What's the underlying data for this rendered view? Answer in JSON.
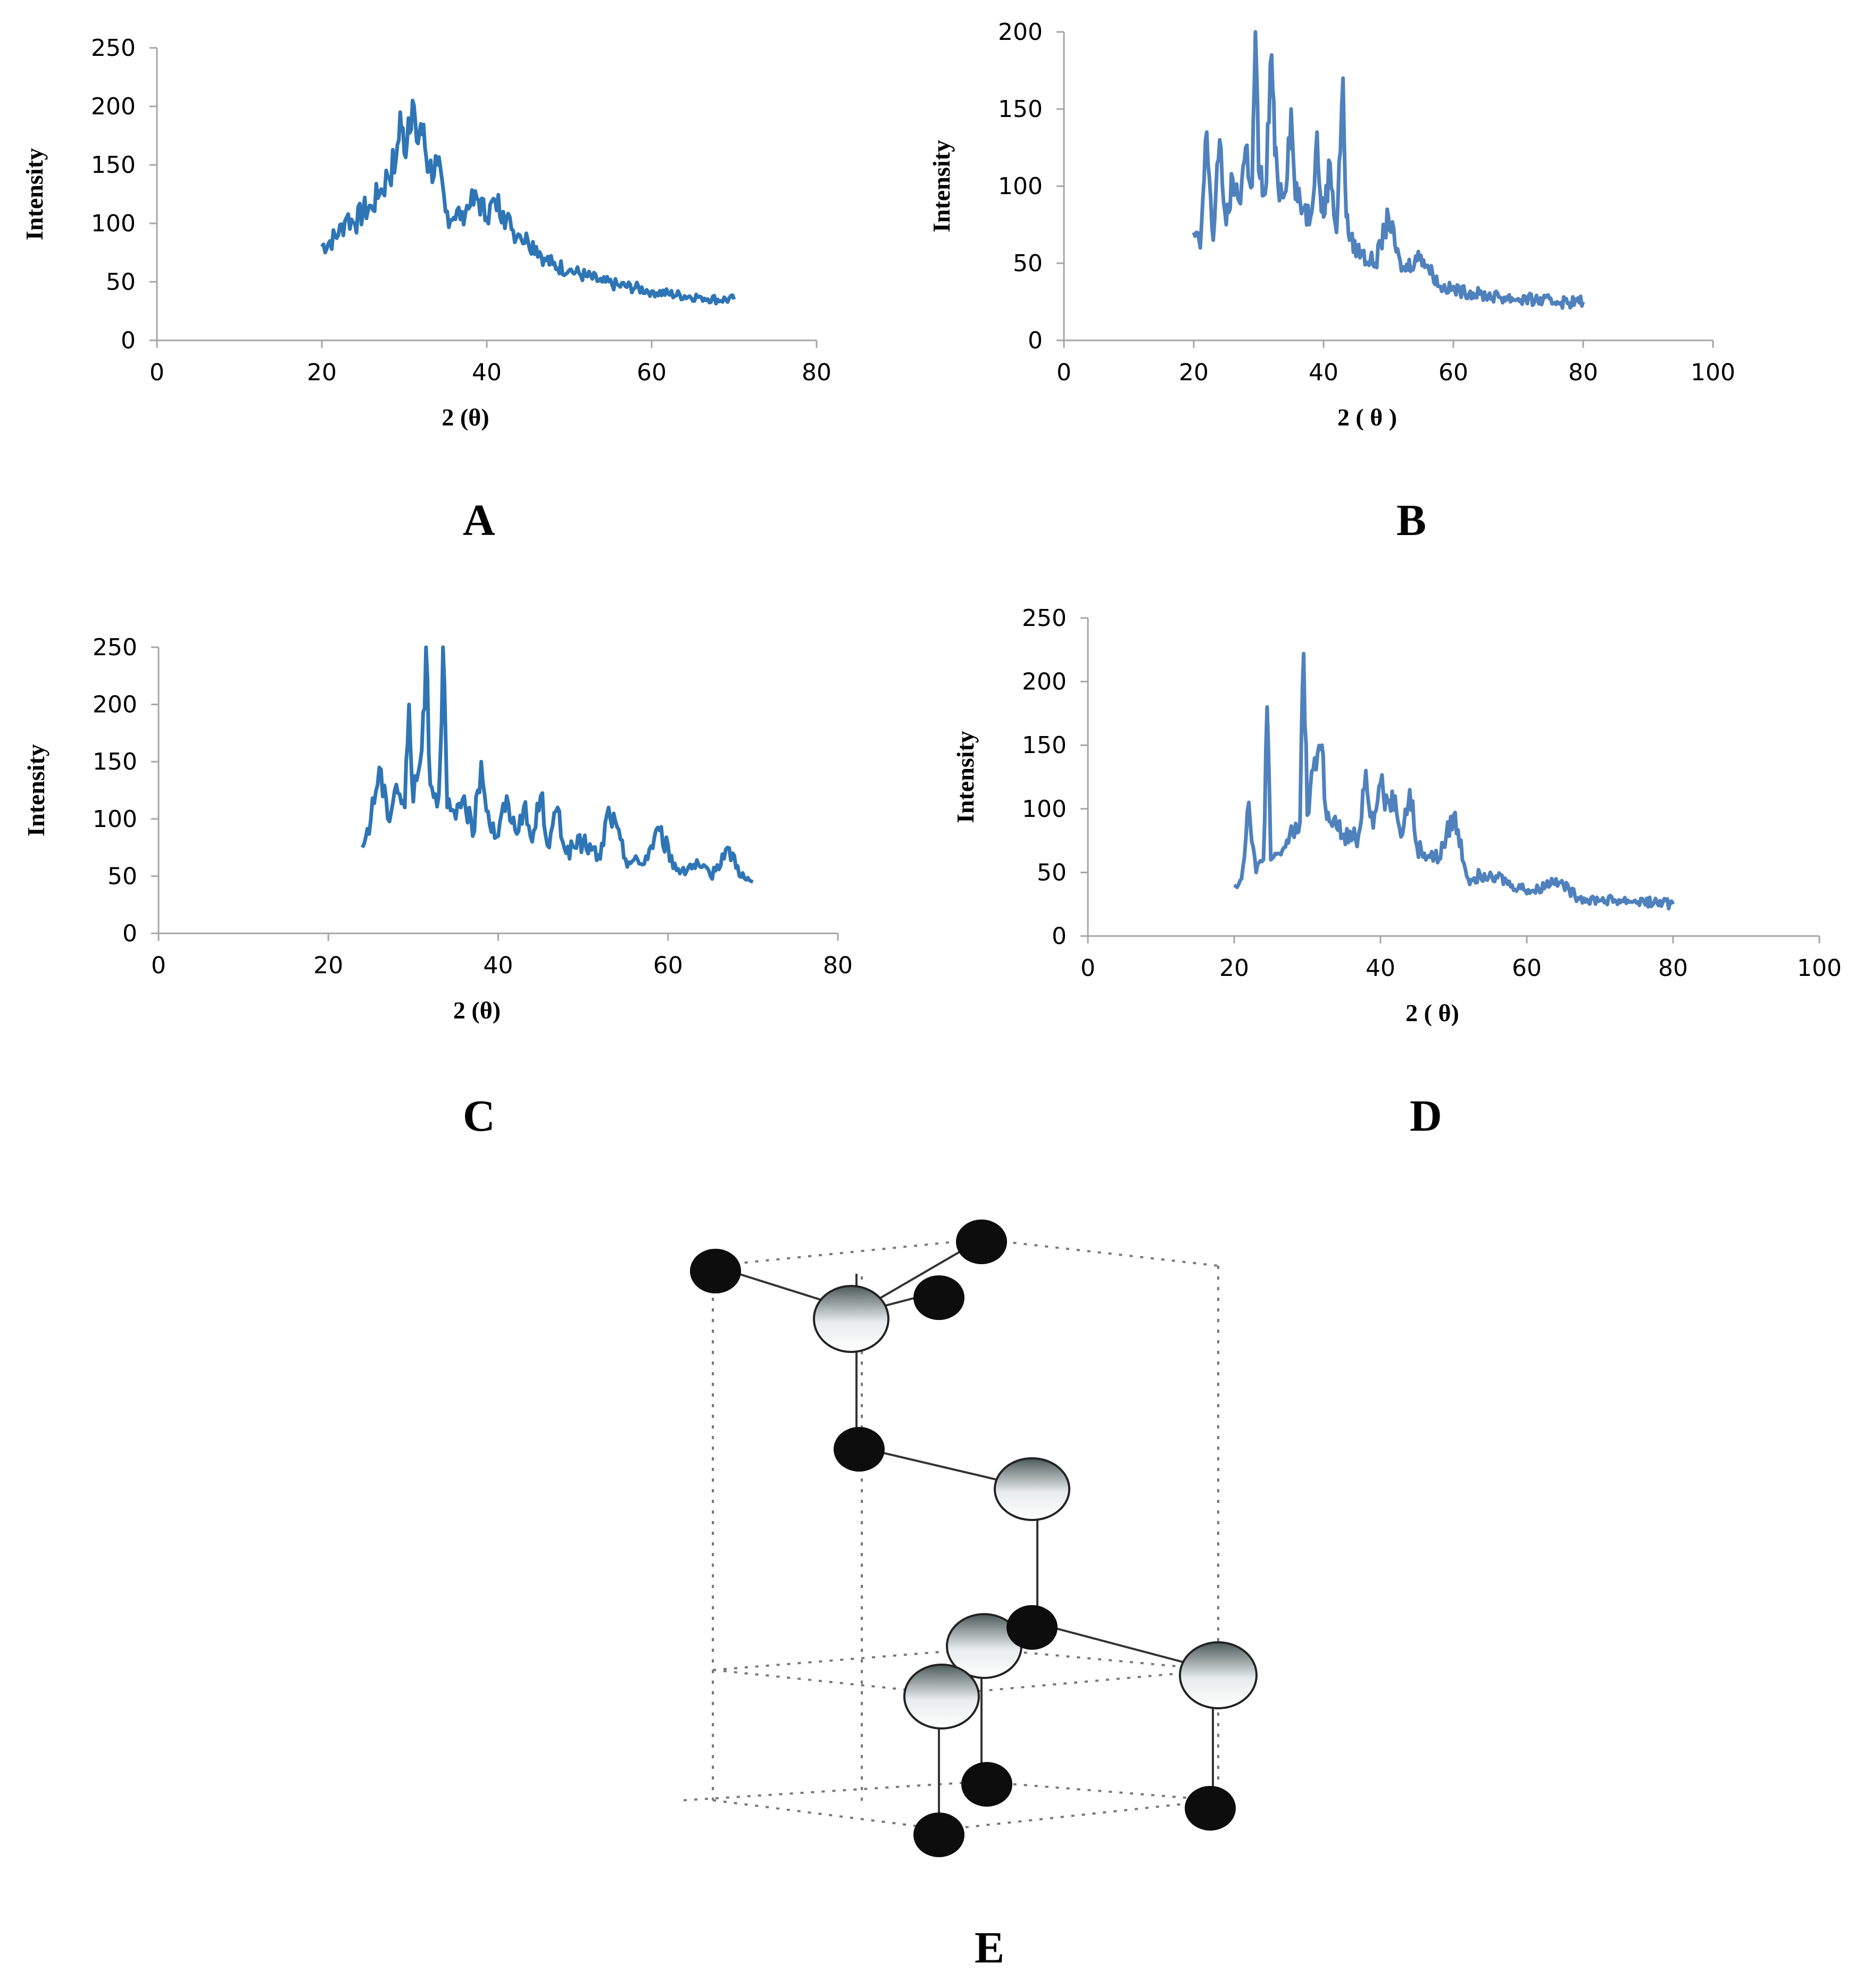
{
  "chart_data": [
    {
      "id": "A",
      "type": "line",
      "panel_label": "A",
      "xlabel": "2 (θ)",
      "ylabel": "Intensity",
      "xlim": [
        0,
        80
      ],
      "ylim": [
        0,
        250
      ],
      "xticks": [
        "0",
        "20",
        "40",
        "60",
        "80"
      ],
      "yticks": [
        "0",
        "50",
        "100",
        "150",
        "200",
        "250"
      ],
      "color": "#2e75b6",
      "series": [
        {
          "name": "A",
          "x": [
            20,
            21,
            22,
            23,
            24,
            25,
            26,
            27,
            28,
            29,
            29.5,
            30,
            30.5,
            31,
            31.5,
            32,
            32.5,
            33,
            34,
            35,
            36,
            37,
            38,
            39,
            40,
            41,
            42,
            43,
            44,
            45,
            46,
            47,
            48,
            50,
            52,
            54,
            56,
            58,
            60,
            62,
            64,
            66,
            68,
            70
          ],
          "y": [
            80,
            85,
            90,
            105,
            100,
            110,
            115,
            125,
            140,
            155,
            195,
            160,
            190,
            205,
            170,
            185,
            165,
            145,
            150,
            110,
            105,
            110,
            115,
            120,
            105,
            120,
            110,
            95,
            90,
            85,
            80,
            70,
            65,
            60,
            55,
            50,
            47,
            45,
            42,
            40,
            38,
            37,
            35,
            35
          ]
        }
      ]
    },
    {
      "id": "B",
      "type": "line",
      "panel_label": "B",
      "xlabel": "2 ( θ )",
      "ylabel": "Intensity",
      "xlim": [
        0,
        100
      ],
      "ylim": [
        0,
        200
      ],
      "xticks": [
        "0",
        "20",
        "40",
        "60",
        "80",
        "100"
      ],
      "yticks": [
        "0",
        "50",
        "100",
        "150",
        "200"
      ],
      "color": "#4f81bd",
      "series": [
        {
          "name": "B",
          "x": [
            20,
            21,
            22,
            23,
            24,
            25,
            26,
            27,
            28,
            29,
            29.5,
            30,
            31,
            32,
            32.5,
            33,
            34,
            35,
            35.5,
            36,
            37,
            38,
            39,
            39.5,
            40,
            41,
            42,
            43,
            43.5,
            44,
            46,
            48,
            50,
            52,
            55,
            58,
            61,
            64,
            67,
            70,
            73,
            76,
            80
          ],
          "y": [
            70,
            60,
            135,
            65,
            130,
            75,
            105,
            90,
            125,
            100,
            200,
            110,
            95,
            185,
            120,
            100,
            95,
            150,
            105,
            90,
            85,
            80,
            135,
            95,
            80,
            115,
            70,
            170,
            80,
            65,
            55,
            50,
            80,
            45,
            55,
            35,
            32,
            30,
            28,
            27,
            26,
            25,
            25
          ]
        }
      ]
    },
    {
      "id": "C",
      "type": "line",
      "panel_label": "C",
      "xlabel": "2 (θ)",
      "ylabel": "Intensity",
      "xlim": [
        0,
        80
      ],
      "ylim": [
        0,
        250
      ],
      "xticks": [
        "0",
        "20",
        "40",
        "60",
        "80"
      ],
      "yticks": [
        "0",
        "50",
        "100",
        "150",
        "200",
        "250"
      ],
      "color": "#2e75b6",
      "series": [
        {
          "name": "C",
          "x": [
            24,
            25,
            26,
            27,
            28,
            29,
            29.5,
            30,
            31,
            31.5,
            32,
            33,
            33.5,
            34,
            35,
            36,
            37,
            38,
            39,
            40,
            41,
            42,
            43,
            44,
            45,
            46,
            47,
            48,
            50,
            52,
            53,
            55,
            57,
            59,
            61,
            63,
            65,
            67,
            69,
            70
          ],
          "y": [
            75,
            100,
            145,
            100,
            130,
            110,
            200,
            115,
            160,
            250,
            130,
            120,
            250,
            110,
            100,
            120,
            85,
            150,
            95,
            85,
            120,
            90,
            110,
            80,
            120,
            75,
            110,
            70,
            80,
            65,
            110,
            65,
            60,
            90,
            55,
            60,
            50,
            75,
            48,
            45
          ]
        }
      ]
    },
    {
      "id": "D",
      "type": "line",
      "panel_label": "D",
      "xlabel": "2 ( θ)",
      "ylabel": "Intensity",
      "xlim": [
        0,
        100
      ],
      "ylim": [
        0,
        250
      ],
      "xticks": [
        "0",
        "20",
        "40",
        "60",
        "80",
        "100"
      ],
      "yticks": [
        "0",
        "50",
        "100",
        "150",
        "200",
        "250"
      ],
      "color": "#4f81bd",
      "series": [
        {
          "name": "D",
          "x": [
            20,
            21,
            22,
            23,
            24,
            24.5,
            25,
            26,
            27,
            28,
            29,
            29.5,
            30,
            31,
            32,
            32.5,
            33,
            34,
            35,
            36,
            37,
            38,
            39,
            40,
            41,
            42,
            43,
            44,
            45,
            46,
            48,
            50,
            52,
            55,
            58,
            61,
            64,
            67,
            70,
            73,
            76,
            80
          ],
          "y": [
            40,
            45,
            105,
            50,
            60,
            180,
            60,
            65,
            70,
            80,
            90,
            222,
            95,
            140,
            150,
            100,
            90,
            85,
            80,
            75,
            80,
            130,
            85,
            120,
            105,
            110,
            80,
            115,
            70,
            65,
            60,
            95,
            45,
            50,
            40,
            35,
            45,
            30,
            28,
            28,
            27,
            25
          ]
        }
      ]
    }
  ],
  "structure": {
    "label": "E",
    "legend_colors": {
      "small_atom": "#0d0d0d",
      "large_atom_top": "#4d5a5a",
      "large_atom_bottom": "#ffffff"
    }
  }
}
